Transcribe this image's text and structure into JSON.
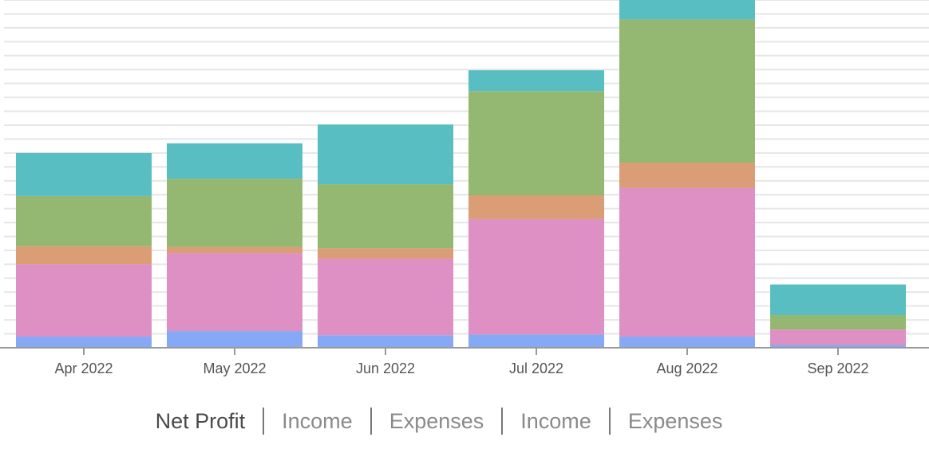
{
  "tabs": [
    {
      "label": "Net Profit",
      "active": true
    },
    {
      "label": "Income",
      "active": false
    },
    {
      "label": "Expenses",
      "active": false
    },
    {
      "label": "Income",
      "active": false
    },
    {
      "label": "Expenses",
      "active": false
    }
  ],
  "chart_data": {
    "type": "bar",
    "stacked": true,
    "categories": [
      "Apr 2022",
      "May 2022",
      "Jun 2022",
      "Jul 2022",
      "Aug 2022",
      "Sep 2022"
    ],
    "ylim": [
      0,
      25
    ],
    "grid": true,
    "series": [
      {
        "color": "#86a9f5",
        "values": [
          0.8,
          1.2,
          0.9,
          0.95,
          0.8,
          0.2
        ]
      },
      {
        "color": "#de90c4",
        "values": [
          5.2,
          5.6,
          5.5,
          8.3,
          10.7,
          1.1
        ]
      },
      {
        "color": "#da9d76",
        "values": [
          1.3,
          0.45,
          0.75,
          1.7,
          1.8,
          0
        ]
      },
      {
        "color": "#94b871",
        "values": [
          3.6,
          4.9,
          4.6,
          7.5,
          10.3,
          1.05
        ]
      },
      {
        "color": "#58bec2",
        "values": [
          3.1,
          2.55,
          4.3,
          1.5,
          1.5,
          2.2
        ]
      }
    ]
  }
}
